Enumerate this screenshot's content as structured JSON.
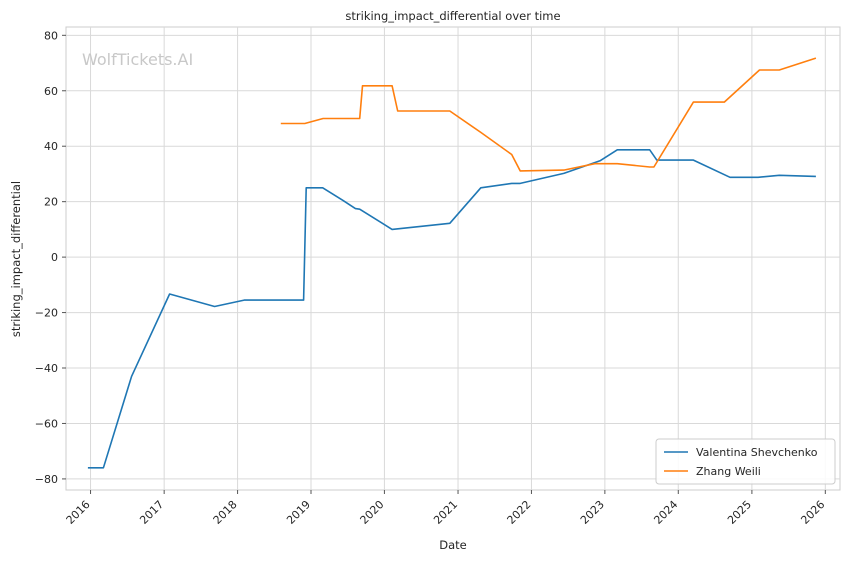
{
  "chart_data": {
    "type": "line",
    "title": "striking_impact_differential over time",
    "xlabel": "Date",
    "ylabel": "striking_impact_differential",
    "watermark": "WolfTickets.AI",
    "x_ticks": [
      "2016",
      "2017",
      "2018",
      "2019",
      "2020",
      "2021",
      "2022",
      "2023",
      "2024",
      "2025",
      "2026"
    ],
    "y_ticks": [
      "80",
      "60",
      "40",
      "20",
      "0",
      "−20",
      "−40",
      "−60",
      "−80"
    ],
    "xlim": [
      "2015-09-01",
      "2026-03-15"
    ],
    "ylim": [
      -84,
      83
    ],
    "grid": true,
    "legend_position": "lower-right",
    "series": [
      {
        "name": "Valentina Shevchenko",
        "color": "#1f77b4",
        "points": [
          [
            "2015-12-19",
            -76
          ],
          [
            "2016-03-05",
            -76
          ],
          [
            "2016-07-23",
            -43
          ],
          [
            "2017-01-28",
            -13.3
          ],
          [
            "2017-09-09",
            -17.8
          ],
          [
            "2018-02-03",
            -15.5
          ],
          [
            "2018-11-25",
            -15.5
          ],
          [
            "2018-12-08",
            25
          ],
          [
            "2019-02-28",
            25
          ],
          [
            "2019-06-08",
            20.5
          ],
          [
            "2019-08-10",
            17.5
          ],
          [
            "2019-08-31",
            17.3
          ],
          [
            "2020-02-08",
            10
          ],
          [
            "2020-11-21",
            12.2
          ],
          [
            "2021-04-24",
            25
          ],
          [
            "2021-09-25",
            26.6
          ],
          [
            "2021-11-06",
            26.6
          ],
          [
            "2022-06-11",
            30.2
          ],
          [
            "2022-12-10",
            34.8
          ],
          [
            "2023-03-04",
            38.7
          ],
          [
            "2023-08-12",
            38.7
          ],
          [
            "2023-09-16",
            35
          ],
          [
            "2024-03-16",
            35
          ],
          [
            "2024-09-14",
            28.8
          ],
          [
            "2025-02-01",
            28.8
          ],
          [
            "2025-05-17",
            29.5
          ],
          [
            "2025-11-15",
            29.1
          ]
        ]
      },
      {
        "name": "Zhang Weili",
        "color": "#ff7f0e",
        "points": [
          [
            "2018-08-04",
            48.2
          ],
          [
            "2018-12-01",
            48.2
          ],
          [
            "2019-03-02",
            50
          ],
          [
            "2019-08-31",
            50
          ],
          [
            "2019-09-14",
            61.8
          ],
          [
            "2020-02-08",
            61.8
          ],
          [
            "2020-03-07",
            52.7
          ],
          [
            "2020-11-21",
            52.7
          ],
          [
            "2021-04-24",
            45
          ],
          [
            "2021-09-25",
            37
          ],
          [
            "2021-11-06",
            31.1
          ],
          [
            "2022-06-11",
            31.4
          ],
          [
            "2022-11-12",
            33.7
          ],
          [
            "2023-03-04",
            33.7
          ],
          [
            "2023-08-12",
            32.5
          ],
          [
            "2023-09-02",
            32.5
          ],
          [
            "2024-03-16",
            55.9
          ],
          [
            "2024-08-17",
            55.9
          ],
          [
            "2025-02-08",
            67.5
          ],
          [
            "2025-05-17",
            67.5
          ],
          [
            "2025-11-15",
            71.8
          ]
        ]
      }
    ]
  }
}
